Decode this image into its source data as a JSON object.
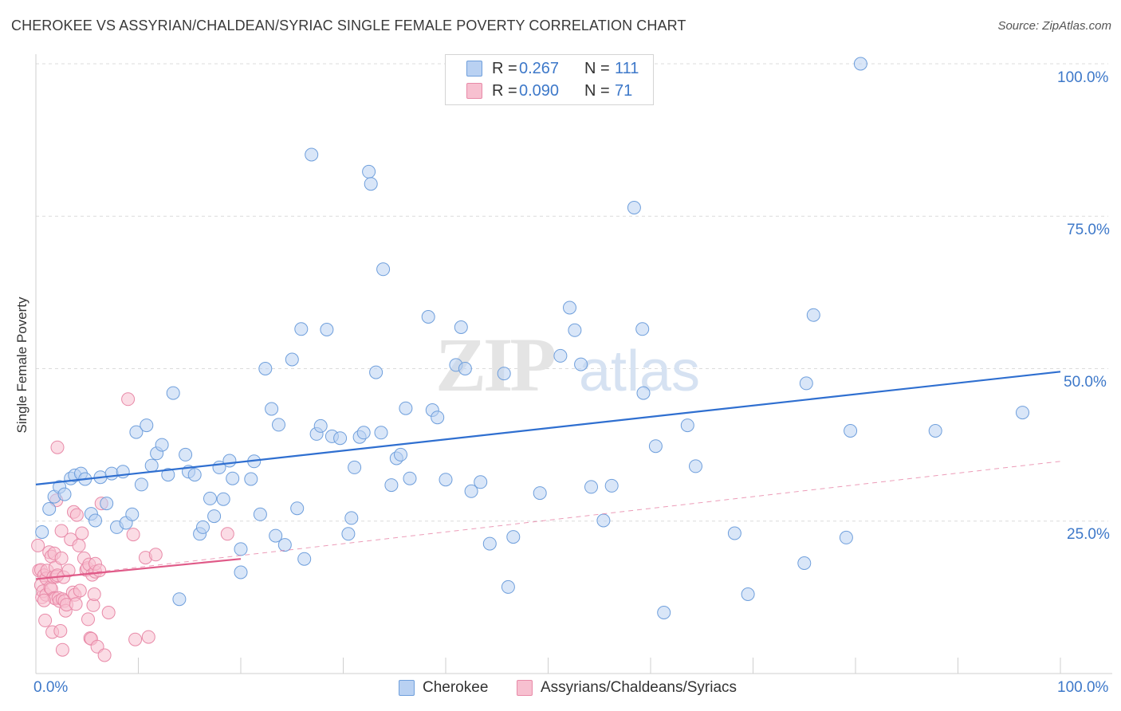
{
  "header": {
    "title": "CHEROKEE VS ASSYRIAN/CHALDEAN/SYRIAC SINGLE FEMALE POVERTY CORRELATION CHART",
    "source": "Source: ZipAtlas.com"
  },
  "legend": {
    "rows": [
      {
        "r_label": "R =",
        "r_value": "0.267",
        "n_label": "N =",
        "n_value": "111"
      },
      {
        "r_label": "R =",
        "r_value": "0.090",
        "n_label": "N =",
        "n_value": "71"
      }
    ]
  },
  "watermark": {
    "zip": "ZIP",
    "atlas": "atlas"
  },
  "colors": {
    "blue_fill": "#b9d1f2",
    "blue_stroke": "#6f9fdc",
    "blue_line": "#2f6fd0",
    "pink_fill": "#f7c0d0",
    "pink_stroke": "#e88aa8",
    "pink_line": "#e05a88",
    "tick_text": "#3d78c9",
    "grid": "#dcdcdc"
  },
  "chart_data": {
    "type": "scatter",
    "title": "CHEROKEE VS ASSYRIAN/CHALDEAN/SYRIAC SINGLE FEMALE POVERTY CORRELATION CHART",
    "xlabel": "",
    "ylabel": "Single Female Poverty",
    "xlim": [
      0,
      100
    ],
    "ylim": [
      0,
      100
    ],
    "x_tick_labels": [
      "0.0%",
      "100.0%"
    ],
    "y_tick_labels": [
      "25.0%",
      "50.0%",
      "75.0%",
      "100.0%"
    ],
    "y_ticks": [
      25,
      50,
      75,
      100
    ],
    "grid": true,
    "legend_position": "bottom-center",
    "series": [
      {
        "name": "Cherokee",
        "color": "#b9d1f2",
        "stroke": "#6f9fdc",
        "trend": {
          "x": [
            0,
            100
          ],
          "y": [
            31.0,
            49.5
          ],
          "style": "solid"
        },
        "points": [
          [
            0.6,
            23.2
          ],
          [
            1.3,
            27.0
          ],
          [
            1.8,
            29.0
          ],
          [
            2.3,
            30.6
          ],
          [
            2.8,
            29.4
          ],
          [
            3.4,
            32.0
          ],
          [
            3.8,
            32.5
          ],
          [
            4.4,
            32.8
          ],
          [
            4.8,
            31.9
          ],
          [
            5.4,
            26.2
          ],
          [
            5.8,
            25.1
          ],
          [
            6.3,
            32.2
          ],
          [
            6.9,
            27.9
          ],
          [
            7.4,
            32.8
          ],
          [
            7.9,
            24.0
          ],
          [
            8.5,
            33.1
          ],
          [
            8.8,
            24.7
          ],
          [
            9.4,
            26.1
          ],
          [
            10.3,
            31.0
          ],
          [
            9.8,
            39.6
          ],
          [
            10.8,
            40.7
          ],
          [
            11.3,
            34.1
          ],
          [
            11.8,
            36.1
          ],
          [
            12.3,
            37.5
          ],
          [
            12.9,
            32.6
          ],
          [
            13.4,
            46.0
          ],
          [
            14.0,
            12.2
          ],
          [
            14.6,
            35.9
          ],
          [
            14.9,
            33.1
          ],
          [
            15.5,
            32.6
          ],
          [
            16.0,
            22.9
          ],
          [
            16.3,
            24.0
          ],
          [
            17.0,
            28.7
          ],
          [
            17.4,
            25.8
          ],
          [
            17.9,
            33.8
          ],
          [
            18.3,
            28.6
          ],
          [
            18.9,
            34.9
          ],
          [
            19.2,
            32.0
          ],
          [
            20.0,
            20.4
          ],
          [
            20.0,
            16.6
          ],
          [
            21.0,
            31.9
          ],
          [
            21.3,
            34.8
          ],
          [
            21.9,
            26.1
          ],
          [
            22.4,
            50.0
          ],
          [
            23.0,
            43.4
          ],
          [
            23.4,
            22.6
          ],
          [
            23.7,
            40.8
          ],
          [
            24.3,
            21.1
          ],
          [
            25.0,
            51.5
          ],
          [
            25.5,
            27.1
          ],
          [
            25.9,
            56.5
          ],
          [
            26.2,
            18.8
          ],
          [
            26.9,
            85.1
          ],
          [
            27.4,
            39.3
          ],
          [
            27.8,
            40.6
          ],
          [
            28.4,
            56.4
          ],
          [
            28.9,
            38.9
          ],
          [
            29.7,
            38.6
          ],
          [
            30.5,
            22.9
          ],
          [
            30.8,
            25.5
          ],
          [
            31.1,
            33.8
          ],
          [
            31.6,
            38.8
          ],
          [
            32.0,
            39.5
          ],
          [
            32.5,
            82.3
          ],
          [
            32.7,
            80.3
          ],
          [
            33.2,
            49.4
          ],
          [
            33.7,
            39.5
          ],
          [
            33.9,
            66.3
          ],
          [
            34.7,
            30.9
          ],
          [
            35.2,
            35.3
          ],
          [
            35.6,
            35.9
          ],
          [
            36.1,
            43.5
          ],
          [
            36.5,
            32.0
          ],
          [
            38.3,
            58.5
          ],
          [
            38.7,
            43.2
          ],
          [
            39.2,
            42.0
          ],
          [
            40.0,
            31.8
          ],
          [
            41.0,
            50.6
          ],
          [
            41.5,
            56.8
          ],
          [
            41.9,
            50.0
          ],
          [
            42.5,
            29.9
          ],
          [
            43.4,
            31.4
          ],
          [
            44.3,
            21.3
          ],
          [
            45.7,
            49.2
          ],
          [
            46.1,
            14.2
          ],
          [
            46.6,
            22.4
          ],
          [
            49.2,
            29.6
          ],
          [
            51.2,
            52.1
          ],
          [
            52.1,
            60.0
          ],
          [
            52.6,
            56.3
          ],
          [
            53.2,
            50.7
          ],
          [
            54.2,
            30.6
          ],
          [
            55.4,
            25.1
          ],
          [
            56.2,
            30.8
          ],
          [
            58.4,
            76.4
          ],
          [
            59.2,
            56.5
          ],
          [
            59.3,
            46.0
          ],
          [
            60.5,
            37.3
          ],
          [
            61.3,
            10.0
          ],
          [
            63.6,
            40.7
          ],
          [
            64.4,
            34.0
          ],
          [
            68.2,
            23.0
          ],
          [
            69.5,
            13.0
          ],
          [
            75.0,
            18.1
          ],
          [
            75.2,
            47.6
          ],
          [
            75.9,
            58.8
          ],
          [
            79.1,
            22.3
          ],
          [
            79.5,
            39.8
          ],
          [
            80.5,
            100.0
          ],
          [
            87.8,
            39.8
          ],
          [
            96.3,
            42.8
          ]
        ]
      },
      {
        "name": "Assyrians/Chaldeans/Syriacs",
        "color": "#f7c0d0",
        "stroke": "#e88aa8",
        "trend": {
          "x": [
            0,
            20
          ],
          "y": [
            15.5,
            18.8
          ],
          "style": "solid",
          "extended": {
            "x": [
              0,
              100
            ],
            "y": [
              15.5,
              34.8
            ],
            "style": "dashed"
          }
        },
        "points": [
          [
            0.2,
            21.0
          ],
          [
            0.3,
            16.9
          ],
          [
            0.5,
            17.0
          ],
          [
            0.5,
            14.5
          ],
          [
            0.6,
            12.5
          ],
          [
            0.7,
            13.5
          ],
          [
            0.8,
            16.1
          ],
          [
            0.9,
            8.7
          ],
          [
            1.0,
            12.9
          ],
          [
            1.0,
            15.6
          ],
          [
            1.1,
            16.9
          ],
          [
            1.3,
            19.9
          ],
          [
            1.4,
            14.1
          ],
          [
            1.5,
            19.2
          ],
          [
            1.5,
            13.9
          ],
          [
            1.6,
            6.8
          ],
          [
            1.7,
            15.8
          ],
          [
            1.8,
            19.7
          ],
          [
            1.8,
            12.4
          ],
          [
            1.9,
            17.4
          ],
          [
            1.9,
            12.3
          ],
          [
            2.0,
            15.9
          ],
          [
            2.0,
            28.4
          ],
          [
            2.1,
            37.1
          ],
          [
            2.1,
            16.1
          ],
          [
            2.2,
            12.4
          ],
          [
            2.3,
            11.9
          ],
          [
            2.4,
            7.0
          ],
          [
            2.5,
            18.9
          ],
          [
            2.5,
            23.4
          ],
          [
            2.6,
            12.2
          ],
          [
            2.6,
            3.9
          ],
          [
            2.7,
            15.8
          ],
          [
            2.8,
            11.9
          ],
          [
            2.9,
            10.3
          ],
          [
            3.0,
            11.3
          ],
          [
            3.2,
            16.9
          ],
          [
            3.4,
            22.0
          ],
          [
            3.6,
            13.3
          ],
          [
            3.7,
            26.5
          ],
          [
            3.8,
            12.9
          ],
          [
            3.9,
            11.4
          ],
          [
            4.0,
            26.0
          ],
          [
            4.2,
            21.0
          ],
          [
            4.3,
            13.6
          ],
          [
            4.5,
            23.0
          ],
          [
            4.7,
            18.9
          ],
          [
            4.9,
            17.0
          ],
          [
            5.0,
            17.3
          ],
          [
            5.1,
            8.9
          ],
          [
            5.2,
            17.9
          ],
          [
            5.3,
            5.8
          ],
          [
            5.4,
            5.7
          ],
          [
            5.5,
            16.2
          ],
          [
            5.6,
            11.2
          ],
          [
            5.7,
            13.0
          ],
          [
            5.8,
            16.7
          ],
          [
            5.8,
            18.0
          ],
          [
            6.0,
            4.4
          ],
          [
            6.2,
            16.9
          ],
          [
            6.4,
            27.9
          ],
          [
            6.7,
            3.0
          ],
          [
            7.1,
            10.0
          ],
          [
            9.0,
            45.0
          ],
          [
            9.5,
            22.8
          ],
          [
            9.7,
            5.6
          ],
          [
            10.7,
            19.0
          ],
          [
            11.0,
            6.0
          ],
          [
            11.7,
            19.5
          ],
          [
            18.7,
            22.9
          ],
          [
            0.8,
            12.0
          ]
        ]
      }
    ]
  }
}
